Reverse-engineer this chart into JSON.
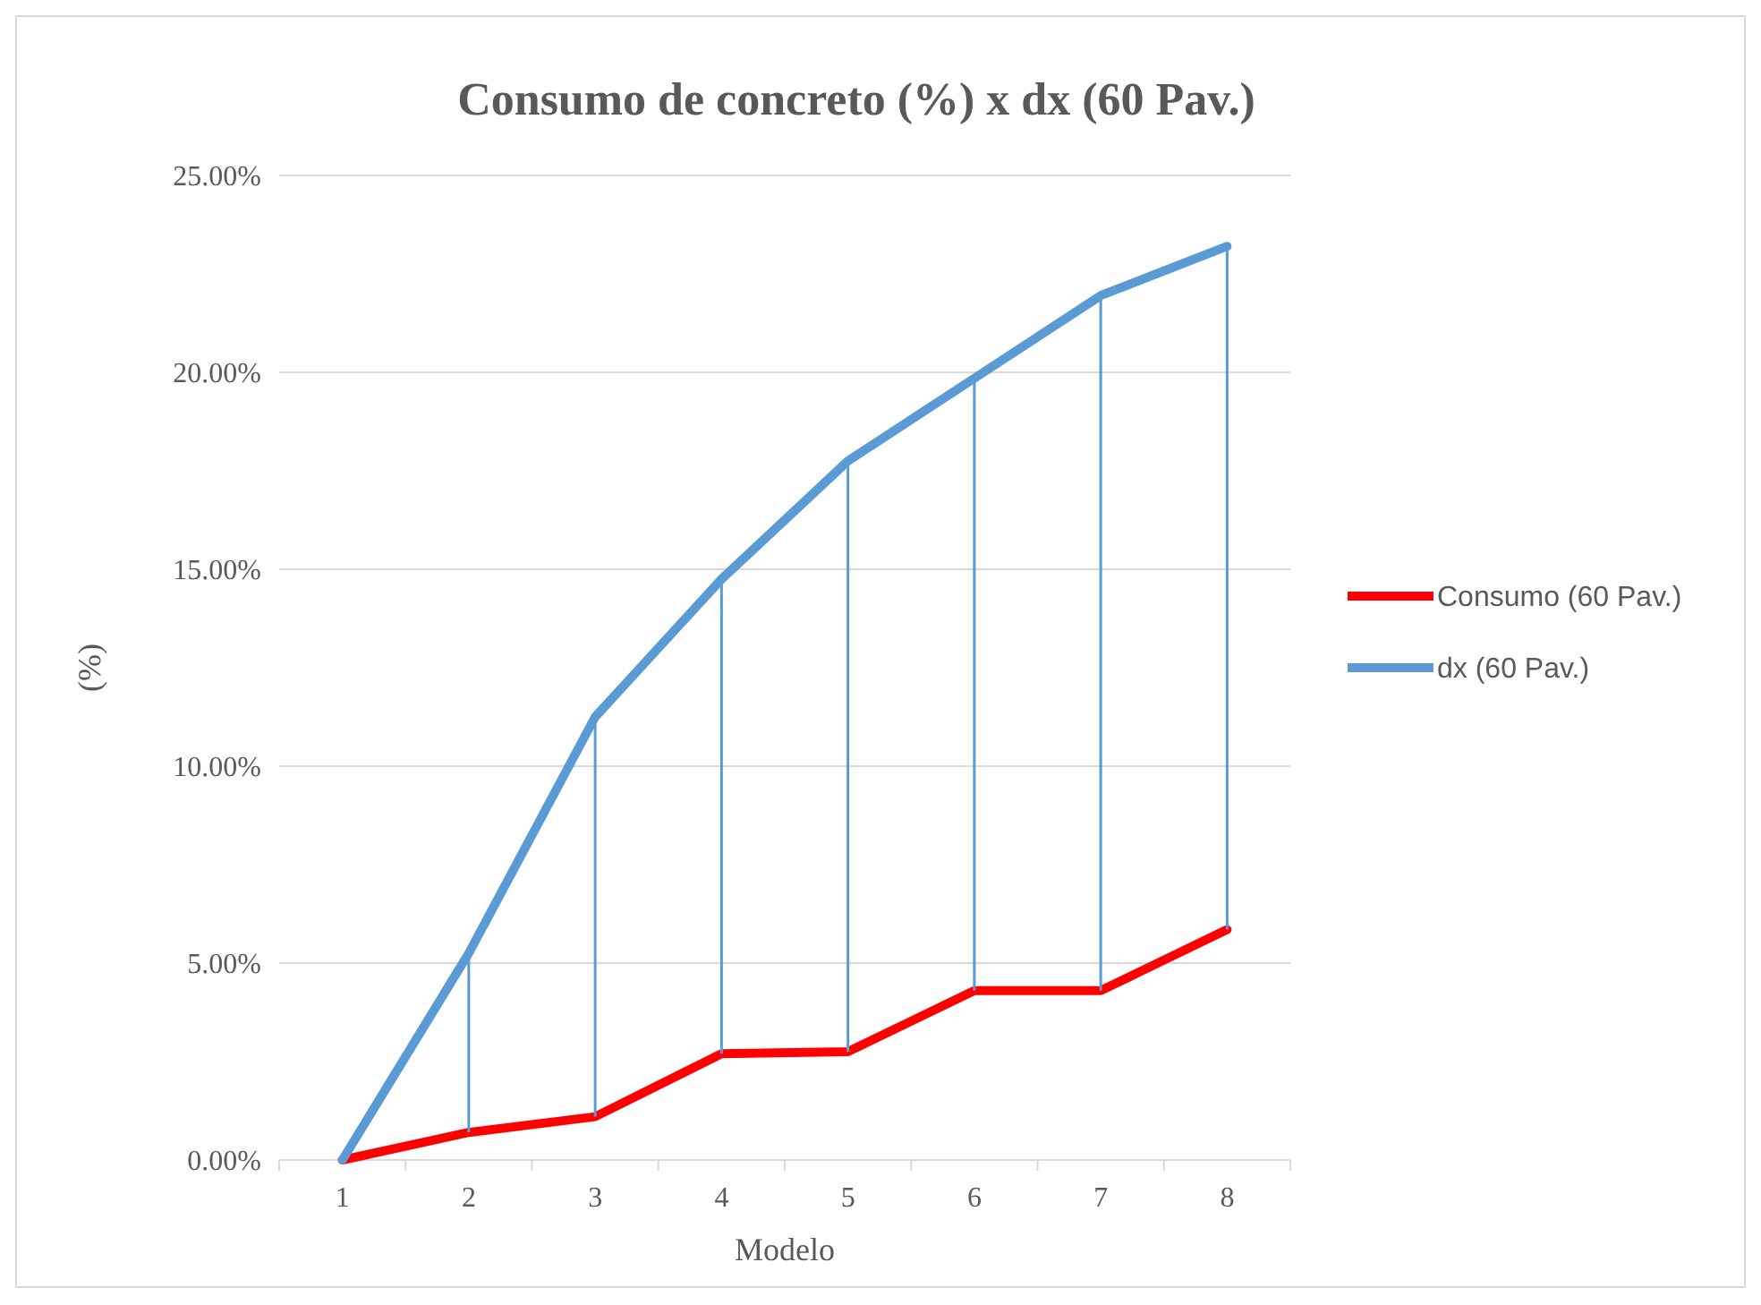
{
  "chart_data": {
    "type": "line",
    "title": "Consumo de concreto (%) x dx (60 Pav.)",
    "xlabel": "Modelo",
    "ylabel": "(%)",
    "categories": [
      "1",
      "2",
      "3",
      "4",
      "5",
      "6",
      "7",
      "8"
    ],
    "series": [
      {
        "name": "Consumo (60 Pav.)",
        "color": "#ff0000",
        "values": [
          0,
          0.7,
          1.1,
          2.7,
          2.75,
          4.3,
          4.3,
          5.85
        ]
      },
      {
        "name": "dx (60 Pav.)",
        "color": "#5b9bd5",
        "values": [
          0,
          5.25,
          11.25,
          14.75,
          17.75,
          19.85,
          21.95,
          23.2
        ],
        "errors": [
          null,
          [
            0.7,
            5.25
          ],
          [
            1.1,
            11.25
          ],
          [
            2.7,
            14.75
          ],
          [
            2.75,
            17.75
          ],
          [
            4.3,
            19.85
          ],
          [
            4.3,
            21.95
          ],
          [
            5.85,
            23.2
          ]
        ]
      }
    ],
    "ylim": [
      0,
      25
    ],
    "yticks": [
      {
        "value": 0,
        "label": "0.00%"
      },
      {
        "value": 5,
        "label": "5.00%"
      },
      {
        "value": 10,
        "label": "10.00%"
      },
      {
        "value": 15,
        "label": "15.00%"
      },
      {
        "value": 20,
        "label": "20.00%"
      },
      {
        "value": 25,
        "label": "25.00%"
      }
    ],
    "grid": "y",
    "legend": "right",
    "marker": "none",
    "line_style": "solid"
  }
}
